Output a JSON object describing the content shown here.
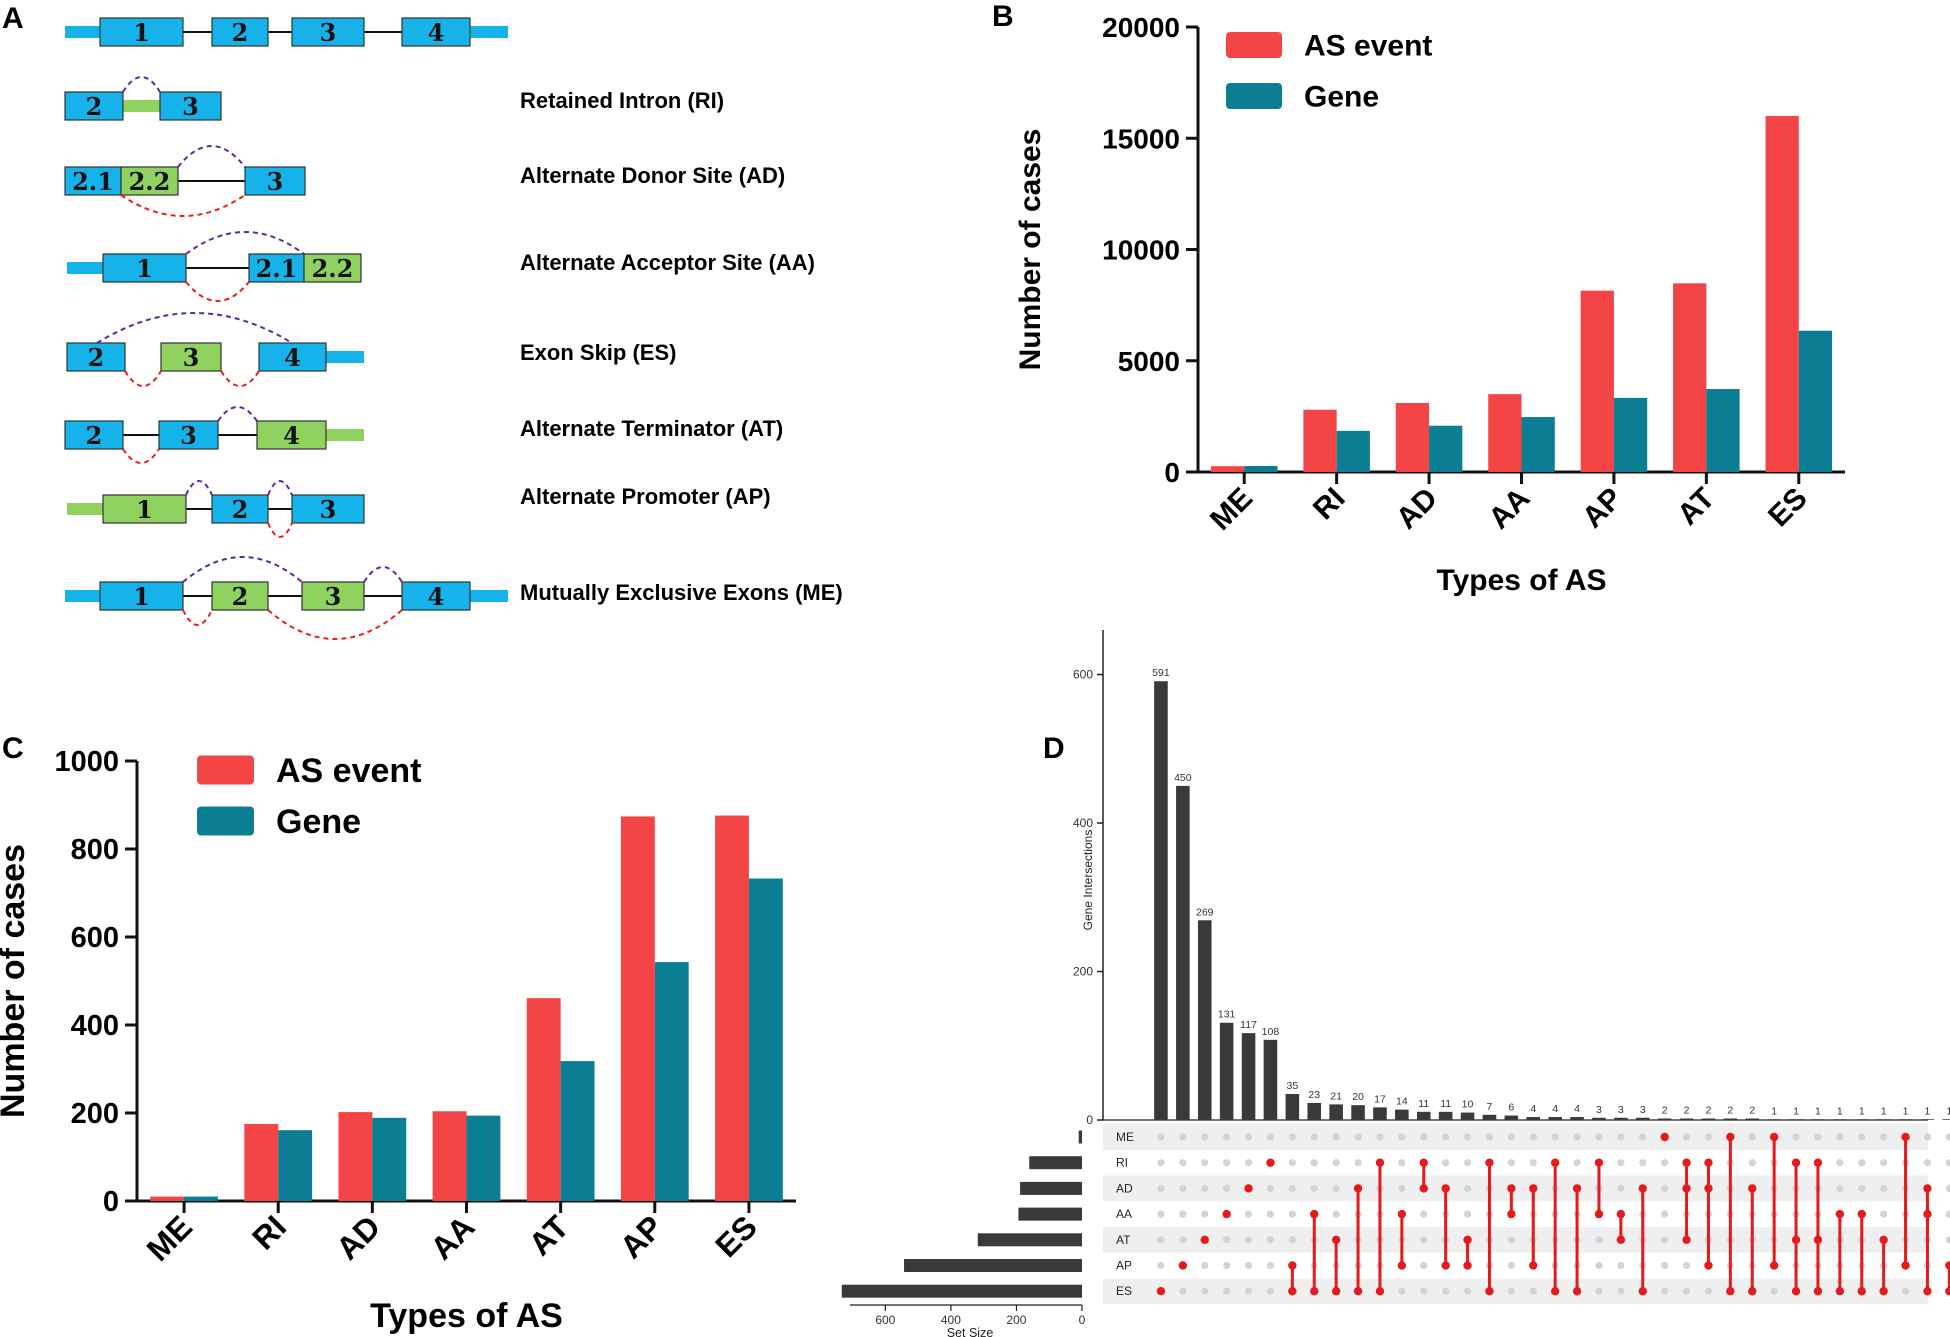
{
  "panel_labels": {
    "a": "A",
    "b": "B",
    "c": "C",
    "d": "D"
  },
  "colors": {
    "as_event": "#f44546",
    "gene": "#0b7e93",
    "exon_blue": "#16b2ea",
    "exon_green": "#8fd260",
    "purple": "#5b2aa0",
    "red_dash": "#e81f1f",
    "upset_bar": "#3a3a3a",
    "upset_dot": "#e41a1c"
  },
  "panel_a": {
    "rows": [
      {
        "name": "Retained Intron (RI)",
        "exons": [
          "2",
          "3"
        ]
      },
      {
        "name": "Alternate Donor Site (AD)",
        "exons": [
          "2.1",
          "2.2",
          "3"
        ]
      },
      {
        "name": "Alternate Acceptor Site (AA)",
        "exons": [
          "1",
          "2.1",
          "2.2"
        ]
      },
      {
        "name": "Exon Skip (ES)",
        "exons": [
          "2",
          "3",
          "4"
        ]
      },
      {
        "name": "Alternate Terminator (AT)",
        "exons": [
          "2",
          "3",
          "4"
        ]
      },
      {
        "name": "Alternate Promoter (AP)",
        "exons": [
          "1",
          "2",
          "3"
        ]
      },
      {
        "name": "Mutually Exclusive Exons (ME)",
        "exons": [
          "1",
          "2",
          "3",
          "4"
        ]
      }
    ],
    "top_exons": [
      "1",
      "2",
      "3",
      "4"
    ]
  },
  "chart_data": [
    {
      "id": "B",
      "type": "bar",
      "categories": [
        "ME",
        "RI",
        "AD",
        "AA",
        "AP",
        "AT",
        "ES"
      ],
      "series": [
        {
          "name": "AS event",
          "values": [
            260,
            2800,
            3100,
            3500,
            8150,
            8480,
            16000
          ]
        },
        {
          "name": "Gene",
          "values": [
            270,
            1850,
            2080,
            2470,
            3330,
            3730,
            6350
          ]
        }
      ],
      "xlabel": "Types of AS",
      "ylabel": "Number of cases",
      "ylim": [
        0,
        20000
      ],
      "yticks": [
        0,
        5000,
        10000,
        15000,
        20000
      ],
      "ytick_labels": [
        "0",
        "5000",
        "10000",
        "15000",
        "20000"
      ]
    },
    {
      "id": "C",
      "type": "bar",
      "categories": [
        "ME",
        "RI",
        "AD",
        "AA",
        "AT",
        "AP",
        "ES"
      ],
      "series": [
        {
          "name": "AS event",
          "values": [
            10,
            175,
            202,
            204,
            461,
            874,
            876
          ]
        },
        {
          "name": "Gene",
          "values": [
            10,
            161,
            189,
            194,
            318,
            543,
            733
          ]
        }
      ],
      "xlabel": "Types of AS",
      "ylabel": "Number of cases",
      "ylim": [
        0,
        1000
      ],
      "yticks": [
        0,
        200,
        400,
        600,
        800,
        1000
      ],
      "ytick_labels": [
        "0",
        "200",
        "400",
        "600",
        "800",
        "1000"
      ]
    },
    {
      "id": "D",
      "type": "upset",
      "sets": [
        "ME",
        "RI",
        "AD",
        "AA",
        "AT",
        "AP",
        "ES"
      ],
      "set_sizes": [
        10,
        161,
        189,
        194,
        318,
        543,
        733
      ],
      "set_size_label": "Set Size",
      "set_size_ticks": [
        600,
        400,
        200,
        0
      ],
      "intersection_label": "Gene Intersections",
      "intersection_ticks": [
        0,
        200,
        400,
        600
      ],
      "ylim": [
        0,
        660
      ],
      "intersections": [
        {
          "value": 591,
          "sets": [
            "ES"
          ]
        },
        {
          "value": 450,
          "sets": [
            "AP"
          ]
        },
        {
          "value": 269,
          "sets": [
            "AT"
          ]
        },
        {
          "value": 131,
          "sets": [
            "AA"
          ]
        },
        {
          "value": 117,
          "sets": [
            "AD"
          ]
        },
        {
          "value": 108,
          "sets": [
            "RI"
          ]
        },
        {
          "value": 35,
          "sets": [
            "AP",
            "ES"
          ]
        },
        {
          "value": 23,
          "sets": [
            "AA",
            "ES"
          ]
        },
        {
          "value": 21,
          "sets": [
            "AT",
            "ES"
          ]
        },
        {
          "value": 20,
          "sets": [
            "AD",
            "ES"
          ]
        },
        {
          "value": 17,
          "sets": [
            "RI",
            "ES"
          ]
        },
        {
          "value": 14,
          "sets": [
            "AA",
            "AP"
          ]
        },
        {
          "value": 11,
          "sets": [
            "RI",
            "AD"
          ]
        },
        {
          "value": 11,
          "sets": [
            "AD",
            "AP"
          ]
        },
        {
          "value": 10,
          "sets": [
            "AT",
            "AP"
          ]
        },
        {
          "value": 7,
          "sets": [
            "RI",
            "ES"
          ]
        },
        {
          "value": 6,
          "sets": [
            "AD",
            "AA"
          ]
        },
        {
          "value": 4,
          "sets": [
            "AD",
            "AP"
          ]
        },
        {
          "value": 4,
          "sets": [
            "RI",
            "ES"
          ]
        },
        {
          "value": 4,
          "sets": [
            "AD",
            "ES"
          ]
        },
        {
          "value": 3,
          "sets": [
            "RI",
            "AA"
          ]
        },
        {
          "value": 3,
          "sets": [
            "AA",
            "AT"
          ]
        },
        {
          "value": 3,
          "sets": [
            "AD",
            "ES"
          ]
        },
        {
          "value": 2,
          "sets": [
            "ME"
          ]
        },
        {
          "value": 2,
          "sets": [
            "RI",
            "AD",
            "AT"
          ]
        },
        {
          "value": 2,
          "sets": [
            "RI",
            "AD",
            "AP"
          ]
        },
        {
          "value": 2,
          "sets": [
            "ME",
            "ES"
          ]
        },
        {
          "value": 2,
          "sets": [
            "AD",
            "ES"
          ]
        },
        {
          "value": 1,
          "sets": [
            "ME",
            "AP"
          ]
        },
        {
          "value": 1,
          "sets": [
            "RI",
            "AT",
            "ES"
          ]
        },
        {
          "value": 1,
          "sets": [
            "RI",
            "AT",
            "ES"
          ]
        },
        {
          "value": 1,
          "sets": [
            "AA",
            "ES"
          ]
        },
        {
          "value": 1,
          "sets": [
            "AA",
            "ES"
          ]
        },
        {
          "value": 1,
          "sets": [
            "AT",
            "ES"
          ]
        },
        {
          "value": 1,
          "sets": [
            "ME",
            "AP"
          ]
        },
        {
          "value": 1,
          "sets": [
            "AD",
            "AA",
            "ES"
          ]
        },
        {
          "value": 1,
          "sets": [
            "AP",
            "ES"
          ]
        }
      ]
    }
  ]
}
